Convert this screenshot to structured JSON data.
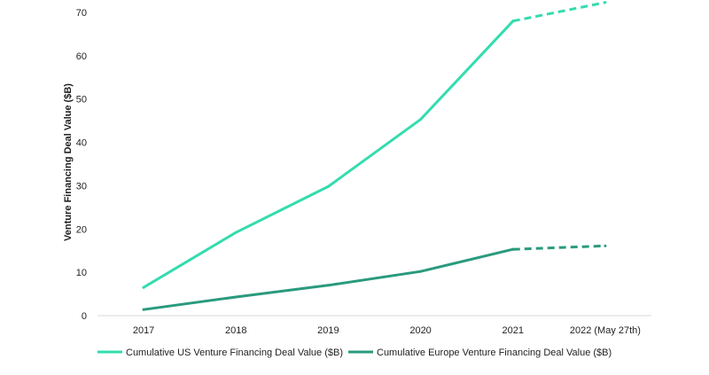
{
  "chart_data": {
    "type": "line",
    "title": "",
    "xlabel": "",
    "ylabel": "Venture Financing Deal Value ($B)",
    "ylim": [
      0,
      70
    ],
    "yticks": [
      0,
      10,
      20,
      30,
      40,
      50,
      60,
      70
    ],
    "categories": [
      "2017",
      "2018",
      "2019",
      "2020",
      "2021",
      "2022 (May 27th)"
    ],
    "grid": false,
    "legend_position": "bottom",
    "series": [
      {
        "name": "Cumulative US Venture Financing Deal Value ($B)",
        "color": "#33dcae",
        "values": [
          6.5,
          19.2,
          29.8,
          45.3,
          68.0,
          72.3
        ],
        "dashed_from_index": 4
      },
      {
        "name": "Cumulative Europe Venture Financing Deal Value ($B)",
        "color": "#2a9a7e",
        "values": [
          1.4,
          4.3,
          7.0,
          10.2,
          15.3,
          16.1
        ],
        "dashed_from_index": 4
      }
    ]
  }
}
